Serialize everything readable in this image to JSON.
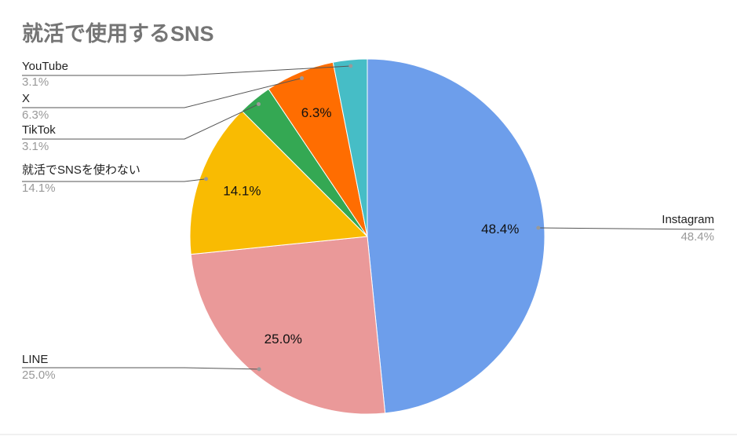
{
  "chart_data": {
    "type": "pie",
    "title": "就活で使用するSNS",
    "categories": [
      "Instagram",
      "LINE",
      "就活でSNSを使わない",
      "TikTok",
      "X",
      "YouTube"
    ],
    "values": [
      48.4,
      25.0,
      14.1,
      3.1,
      6.3,
      3.1
    ],
    "value_labels": [
      "48.4%",
      "25.0%",
      "14.1%",
      "3.1%",
      "6.3%",
      "3.1%"
    ],
    "colors": [
      "#6d9eeb",
      "#ea9999",
      "#f9bb02",
      "#34a853",
      "#ff6d01",
      "#46bdc6"
    ]
  }
}
